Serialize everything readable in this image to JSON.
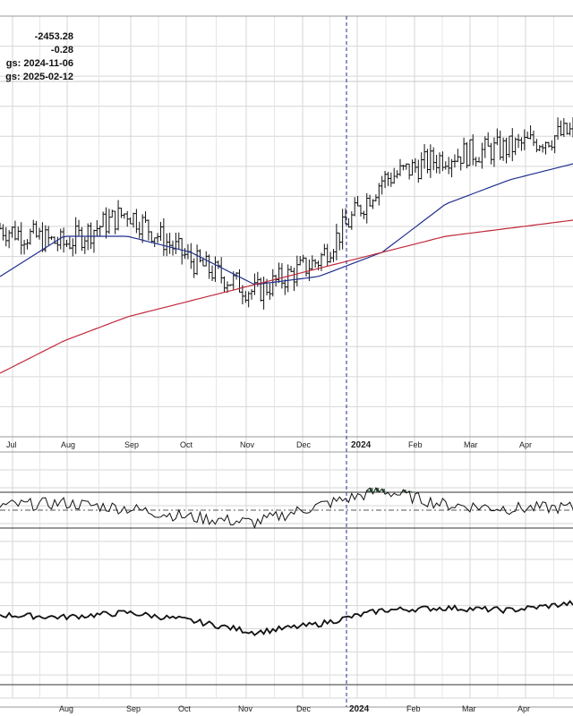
{
  "info": {
    "value_line": "-2453.28",
    "change_line": "-0.28",
    "earnings_last": "gs: 2024-11-06",
    "earnings_next": "gs: 2025-02-12"
  },
  "colors": {
    "price": "#111111",
    "ma_short": "#1f2f8f",
    "ma_long": "#c0283a",
    "indicator": "#111111",
    "overbought_fill": "#3f6b4a",
    "grid": "#d6d6d6",
    "marker": "#1f2f8f"
  },
  "chart_data": [
    {
      "type": "line",
      "panel": "price",
      "x": [
        "Jul",
        "Aug",
        "Sep",
        "Oct",
        "Nov",
        "Dec",
        "2024",
        "Feb",
        "Mar",
        "Apr"
      ],
      "series": [
        {
          "values": [
            62,
            60,
            64,
            58,
            54,
            58,
            68,
            71,
            72,
            74
          ]
        },
        {
          "values": [
            56,
            61,
            61,
            59,
            55,
            56,
            59,
            65,
            68,
            70
          ]
        },
        {
          "values": [
            44,
            48,
            51,
            53,
            55,
            57,
            59,
            61,
            62,
            63
          ]
        }
      ]
    },
    {
      "type": "line",
      "panel": "oscillator",
      "x": [
        "Jul",
        "Aug",
        "Sep",
        "Oct",
        "Nov",
        "Dec",
        "2024",
        "Feb",
        "Mar",
        "Apr"
      ],
      "levels": [
        30,
        50,
        70
      ],
      "series": [
        {
          "values": [
            55,
            58,
            52,
            42,
            36,
            55,
            72,
            56,
            52,
            53
          ]
        }
      ]
    },
    {
      "type": "line",
      "panel": "indicator",
      "x": [
        "Jul",
        "Aug",
        "Sep",
        "Oct",
        "Nov",
        "Dec",
        "2024",
        "Feb",
        "Mar",
        "Apr"
      ],
      "series": [
        {
          "values": [
            60,
            58,
            62,
            55,
            45,
            52,
            64,
            66,
            64,
            70
          ]
        }
      ]
    }
  ],
  "x_labels_price": [
    "Jul",
    "Aug",
    "Sep",
    "Oct",
    "Nov",
    "Dec",
    "2024",
    "Feb",
    "Mar",
    "Apr"
  ],
  "x_labels_bottom": [
    "Aug",
    "Sep",
    "Oct",
    "Nov",
    "Dec",
    "2024",
    "Feb",
    "Mar",
    "Apr"
  ]
}
